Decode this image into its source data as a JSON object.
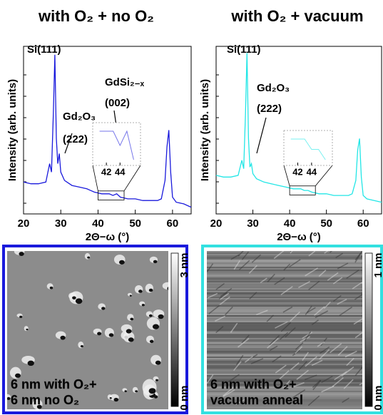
{
  "chart_data": [
    {
      "type": "line",
      "title": "with O₂ + no O₂",
      "x_label": "2Θ−ω (°)",
      "y_label": "Intensity (arb. units)",
      "x": [
        20,
        22,
        24,
        26,
        27,
        27.5,
        28,
        28.4,
        28.8,
        29.2,
        29.6,
        30,
        31,
        33,
        35,
        37,
        39,
        41,
        43,
        44,
        45,
        46,
        48,
        50,
        52,
        54,
        56,
        57,
        58,
        58.5,
        59,
        59.5,
        60,
        61,
        63,
        65
      ],
      "values": [
        19,
        18,
        18,
        19,
        30,
        25,
        60,
        95,
        45,
        30,
        36,
        25,
        20,
        17,
        16,
        15,
        13,
        12,
        12,
        11,
        12,
        10,
        9,
        9,
        8,
        8,
        8,
        9,
        20,
        40,
        50,
        25,
        10,
        7,
        6,
        4
      ],
      "color": "#1a1adc",
      "xlim": [
        20,
        65
      ],
      "xticks": [
        20,
        30,
        40,
        50,
        60
      ],
      "ylim": [
        0,
        100
      ],
      "annotations": [
        "Si(111)",
        "Gd₂O₃",
        "(222)",
        "GdSi₂₋ₓ",
        "(002)"
      ],
      "inset": {
        "xlim": [
          40,
          47
        ],
        "xticks": [
          42,
          44
        ]
      }
    },
    {
      "type": "line",
      "title": "with O₂ + vacuum",
      "x_label": "2Θ−ω (°)",
      "y_label": "Intensity (arb. units)",
      "x": [
        20,
        22,
        24,
        26,
        27,
        27.5,
        28,
        28.4,
        28.8,
        29.2,
        29.6,
        30,
        31,
        33,
        35,
        37,
        39,
        41,
        43,
        44,
        45,
        46,
        48,
        50,
        52,
        54,
        56,
        57,
        58,
        58.5,
        59,
        59.5,
        60,
        61,
        63,
        65
      ],
      "values": [
        23,
        22,
        22,
        23,
        32,
        27,
        60,
        96,
        45,
        28,
        30,
        24,
        21,
        19,
        18,
        17,
        16,
        15,
        15,
        14,
        14,
        13,
        12,
        12,
        11,
        11,
        11,
        12,
        20,
        38,
        45,
        22,
        11,
        9,
        8,
        7
      ],
      "color": "#22e6e6",
      "xlim": [
        20,
        65
      ],
      "xticks": [
        20,
        30,
        40,
        50,
        60
      ],
      "ylim": [
        0,
        100
      ],
      "annotations": [
        "Si(111)",
        "Gd₂O₃",
        "(222)"
      ],
      "inset": {
        "xlim": [
          40,
          47
        ],
        "xticks": [
          42,
          44
        ]
      }
    }
  ],
  "afm_panels": [
    {
      "scale_top": "3 nm",
      "scale_bottom": "0 nm",
      "caption": [
        "6 nm with O₂+",
        "6 nm no O₂"
      ],
      "border_color": "#1a1adc"
    },
    {
      "scale_top": "1 nm",
      "scale_bottom": "0 nm",
      "caption": [
        "6 nm with O₂+",
        "vacuum anneal"
      ],
      "border_color": "#33e0e0"
    }
  ]
}
